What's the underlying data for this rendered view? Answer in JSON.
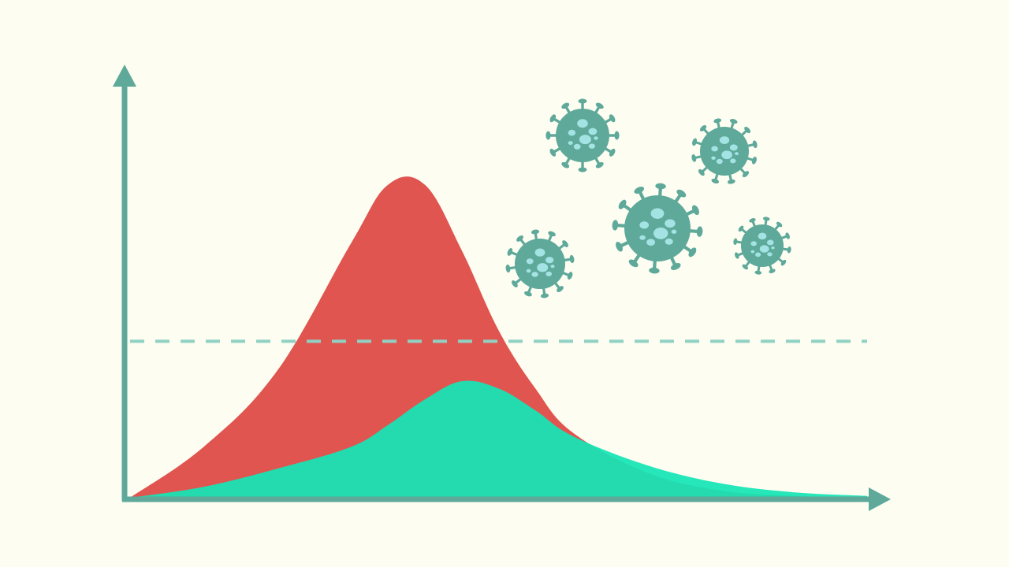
{
  "chart_data": {
    "type": "area",
    "title": "",
    "xlabel": "",
    "ylabel": "",
    "x_tick_labels": [],
    "y_tick_labels": [],
    "xlim": [
      0,
      100
    ],
    "ylim": [
      0,
      100
    ],
    "grid": false,
    "legend": "none",
    "x": [
      0,
      10,
      20,
      30,
      35,
      40,
      45,
      50,
      55,
      60,
      70,
      80,
      90,
      100
    ],
    "series": [
      {
        "values": [
          0,
          14,
          35,
          70,
          86,
          86,
          68,
          46,
          30,
          18,
          7,
          2,
          0.5,
          0
        ],
        "color": "#e05550"
      },
      {
        "values": [
          0,
          3,
          8,
          14,
          20,
          27,
          32,
          30,
          24,
          17,
          9,
          4,
          1.5,
          0.5
        ],
        "color": "#14e5b6"
      }
    ],
    "threshold": {
      "value": 43,
      "style": "dashed",
      "color": "#8fd2c4"
    },
    "decoration": {
      "icon": "virus-icon",
      "count": 5,
      "color": "#5ea99a",
      "accent": "#a4e3e3"
    },
    "axis_color": "#5ea99a"
  }
}
